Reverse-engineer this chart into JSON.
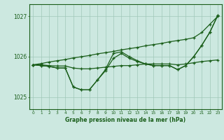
{
  "title": "Graphe pression niveau de la mer (hPa)",
  "bg_color": "#cce8e0",
  "line_color": "#1a5e1a",
  "grid_color": "#a0c8b8",
  "x_min": 0,
  "x_max": 23,
  "y_min": 1024.7,
  "y_max": 1027.3,
  "yticks": [
    1025,
    1026,
    1027
  ],
  "xticks": [
    0,
    1,
    2,
    3,
    4,
    5,
    6,
    7,
    8,
    9,
    10,
    11,
    12,
    13,
    14,
    15,
    16,
    17,
    18,
    19,
    20,
    21,
    22,
    23
  ],
  "series_straight": [
    1025.8,
    1025.83,
    1025.87,
    1025.9,
    1025.93,
    1025.97,
    1026.0,
    1026.03,
    1026.07,
    1026.1,
    1026.13,
    1026.17,
    1026.2,
    1026.23,
    1026.27,
    1026.3,
    1026.33,
    1026.37,
    1026.4,
    1026.43,
    1026.47,
    1026.6,
    1026.8,
    1027.0
  ],
  "series_flat": [
    1025.8,
    1025.8,
    1025.78,
    1025.77,
    1025.77,
    1025.72,
    1025.7,
    1025.7,
    1025.72,
    1025.74,
    1025.76,
    1025.78,
    1025.78,
    1025.8,
    1025.82,
    1025.82,
    1025.82,
    1025.82,
    1025.8,
    1025.82,
    1025.85,
    1025.88,
    1025.9,
    1025.92
  ],
  "series_dip1": [
    1025.8,
    1025.78,
    1025.76,
    1025.72,
    1025.72,
    1025.25,
    1025.18,
    1025.18,
    1025.42,
    1025.68,
    1026.08,
    1026.12,
    1026.0,
    1025.9,
    1025.82,
    1025.78,
    1025.78,
    1025.78,
    1025.68,
    1025.78,
    1026.0,
    1026.28,
    1026.6,
    1027.02
  ],
  "series_dip2": [
    1025.8,
    1025.78,
    1025.76,
    1025.72,
    1025.72,
    1025.25,
    1025.18,
    1025.18,
    1025.42,
    1025.65,
    1025.96,
    1026.08,
    1025.96,
    1025.88,
    1025.82,
    1025.78,
    1025.78,
    1025.78,
    1025.68,
    1025.78,
    1026.0,
    1026.28,
    1026.6,
    1027.02
  ]
}
